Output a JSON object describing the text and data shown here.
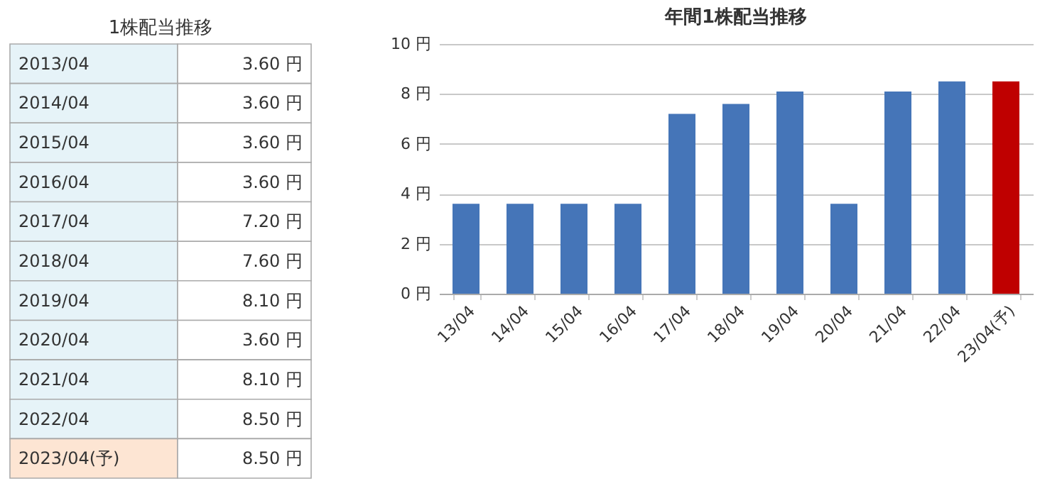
{
  "chart_data": [
    {
      "type": "other",
      "title": "1株配当推移",
      "categories": [
        "2013/04",
        "2014/04",
        "2015/04",
        "2016/04",
        "2017/04",
        "2018/04",
        "2019/04",
        "2020/04",
        "2021/04",
        "2022/04",
        "2023/04(予)"
      ],
      "value_labels": [
        "3.60 円",
        "3.60 円",
        "3.60 円",
        "3.60 円",
        "7.20 円",
        "7.60 円",
        "8.10 円",
        "3.60 円",
        "8.10 円",
        "8.50 円",
        "8.50 円"
      ],
      "colors": [
        "#e6f3f8",
        "#e6f3f8",
        "#e6f3f8",
        "#e6f3f8",
        "#e6f3f8",
        "#e6f3f8",
        "#e6f3f8",
        "#e6f3f8",
        "#e6f3f8",
        "#e6f3f8",
        "#fde5d3"
      ]
    },
    {
      "type": "bar",
      "title": "年間1株配当推移",
      "categories": [
        "13/04",
        "14/04",
        "15/04",
        "16/04",
        "17/04",
        "18/04",
        "19/04",
        "20/04",
        "21/04",
        "22/04",
        "23/04(予)"
      ],
      "values": [
        3.6,
        3.6,
        3.6,
        3.6,
        7.2,
        7.6,
        8.1,
        3.6,
        8.1,
        8.5,
        8.5
      ],
      "colors": [
        "#4575b8",
        "#4575b8",
        "#4575b8",
        "#4575b8",
        "#4575b8",
        "#4575b8",
        "#4575b8",
        "#4575b8",
        "#4575b8",
        "#4575b8",
        "#bf0000"
      ],
      "ylim": [
        0,
        10
      ],
      "yticks": [
        {
          "value": 0,
          "label": "0 円"
        },
        {
          "value": 2,
          "label": "2 円"
        },
        {
          "value": 4,
          "label": "4 円"
        },
        {
          "value": 6,
          "label": "6 円"
        },
        {
          "value": 8,
          "label": "8 円"
        },
        {
          "value": 10,
          "label": "10 円"
        }
      ],
      "grid": "y"
    }
  ]
}
